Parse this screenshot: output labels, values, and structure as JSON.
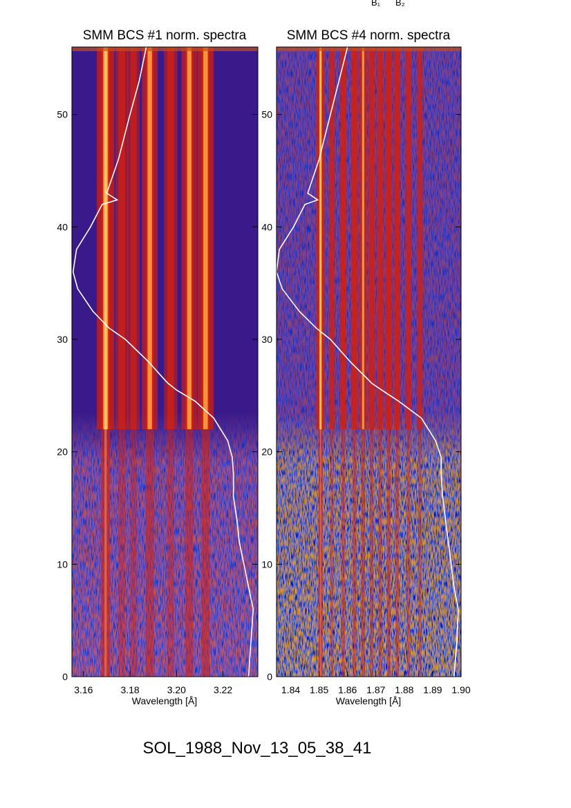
{
  "top_labels": [
    "B₁",
    "B₂"
  ],
  "footer_label": "SOL_1988_Nov_13_05_38_41",
  "colors": {
    "background_low": "#3a1a8a",
    "noise_blue": "#1a2ad8",
    "line_red": "#d22010",
    "line_peak": "#ffa040",
    "line_core": "#ffd070",
    "curve": "#ffffff"
  },
  "chart_data": [
    {
      "type": "heatmap",
      "title": "SMM BCS #1 norm. spectra",
      "xlabel": "Wavelength [Å]",
      "ylabel": "",
      "xlim": [
        3.155,
        3.235
      ],
      "ylim": [
        0,
        56
      ],
      "x_ticks": [
        3.16,
        3.18,
        3.2,
        3.22
      ],
      "x_tick_labels": [
        "3.16",
        "3.18",
        "3.20",
        "3.22"
      ],
      "y_ticks": [
        0,
        10,
        20,
        30,
        40,
        50
      ],
      "y_tick_labels": [
        "0",
        "10",
        "20",
        "30",
        "40",
        "50"
      ],
      "spectral_lines": [
        {
          "x": 3.1695,
          "intensity": 1.0
        },
        {
          "x": 3.1765,
          "intensity": 0.45
        },
        {
          "x": 3.1815,
          "intensity": 0.4
        },
        {
          "x": 3.1885,
          "intensity": 0.8
        },
        {
          "x": 3.1975,
          "intensity": 0.5
        },
        {
          "x": 3.2055,
          "intensity": 0.75
        },
        {
          "x": 3.2125,
          "intensity": 0.85
        }
      ],
      "noise_below_time": 22,
      "curve_points": [
        [
          3.231,
          0
        ],
        [
          3.232,
          3
        ],
        [
          3.233,
          6
        ],
        [
          3.231,
          8
        ],
        [
          3.229,
          10
        ],
        [
          3.227,
          12
        ],
        [
          3.226,
          14
        ],
        [
          3.2245,
          16
        ],
        [
          3.2245,
          18
        ],
        [
          3.224,
          19.5
        ],
        [
          3.222,
          21
        ],
        [
          3.216,
          23
        ],
        [
          3.208,
          24.5
        ],
        [
          3.2,
          25.5
        ],
        [
          3.1963,
          26.1
        ],
        [
          3.1945,
          26.5
        ],
        [
          3.188,
          28
        ],
        [
          3.178,
          30
        ],
        [
          3.171,
          31
        ],
        [
          3.164,
          32.5
        ],
        [
          3.1575,
          34.5
        ],
        [
          3.1555,
          36
        ],
        [
          3.157,
          38
        ],
        [
          3.163,
          40
        ],
        [
          3.168,
          42
        ],
        [
          3.1745,
          42.4
        ],
        [
          3.17,
          43
        ],
        [
          3.175,
          46
        ],
        [
          3.18,
          50
        ],
        [
          3.184,
          53
        ],
        [
          3.187,
          56
        ]
      ]
    },
    {
      "type": "heatmap",
      "title": "SMM BCS #4 norm. spectra",
      "xlabel": "Wavelength [Å]",
      "ylabel": "",
      "xlim": [
        1.835,
        1.9
      ],
      "ylim": [
        0,
        56
      ],
      "x_ticks": [
        1.84,
        1.85,
        1.86,
        1.87,
        1.88,
        1.89,
        1.9
      ],
      "x_tick_labels": [
        "1.84",
        "1.85",
        "1.86",
        "1.87",
        "1.88",
        "1.89",
        "1.90"
      ],
      "y_ticks": [
        0,
        10,
        20,
        30,
        40,
        50
      ],
      "y_tick_labels": [
        "0",
        "10",
        "20",
        "30",
        "40",
        "50"
      ],
      "spectral_lines": [
        {
          "x": 1.8505,
          "intensity": 1.0
        },
        {
          "x": 1.8545,
          "intensity": 0.4
        },
        {
          "x": 1.8585,
          "intensity": 0.55
        },
        {
          "x": 1.8625,
          "intensity": 0.7
        },
        {
          "x": 1.8655,
          "intensity": 0.75
        },
        {
          "x": 1.8685,
          "intensity": 0.65
        },
        {
          "x": 1.8715,
          "intensity": 0.6
        },
        {
          "x": 1.8745,
          "intensity": 0.7
        },
        {
          "x": 1.8775,
          "intensity": 0.55
        },
        {
          "x": 1.8815,
          "intensity": 0.5
        },
        {
          "x": 1.8855,
          "intensity": 0.45
        }
      ],
      "noise_below_time": 22,
      "curve_points": [
        [
          1.8975,
          0
        ],
        [
          1.8985,
          3
        ],
        [
          1.899,
          6
        ],
        [
          1.8975,
          8
        ],
        [
          1.8965,
          10
        ],
        [
          1.8955,
          12
        ],
        [
          1.8945,
          14
        ],
        [
          1.8935,
          16
        ],
        [
          1.893,
          18
        ],
        [
          1.893,
          19.5
        ],
        [
          1.891,
          21
        ],
        [
          1.886,
          23
        ],
        [
          1.878,
          24.5
        ],
        [
          1.872,
          25.5
        ],
        [
          1.8685,
          26.1
        ],
        [
          1.867,
          26.5
        ],
        [
          1.861,
          28
        ],
        [
          1.854,
          30
        ],
        [
          1.849,
          31
        ],
        [
          1.843,
          32.5
        ],
        [
          1.837,
          34.5
        ],
        [
          1.835,
          36
        ],
        [
          1.836,
          38
        ],
        [
          1.841,
          40
        ],
        [
          1.845,
          42
        ],
        [
          1.8495,
          42.4
        ],
        [
          1.846,
          43
        ],
        [
          1.85,
          46
        ],
        [
          1.854,
          50
        ],
        [
          1.857,
          53
        ],
        [
          1.86,
          56
        ]
      ]
    }
  ]
}
